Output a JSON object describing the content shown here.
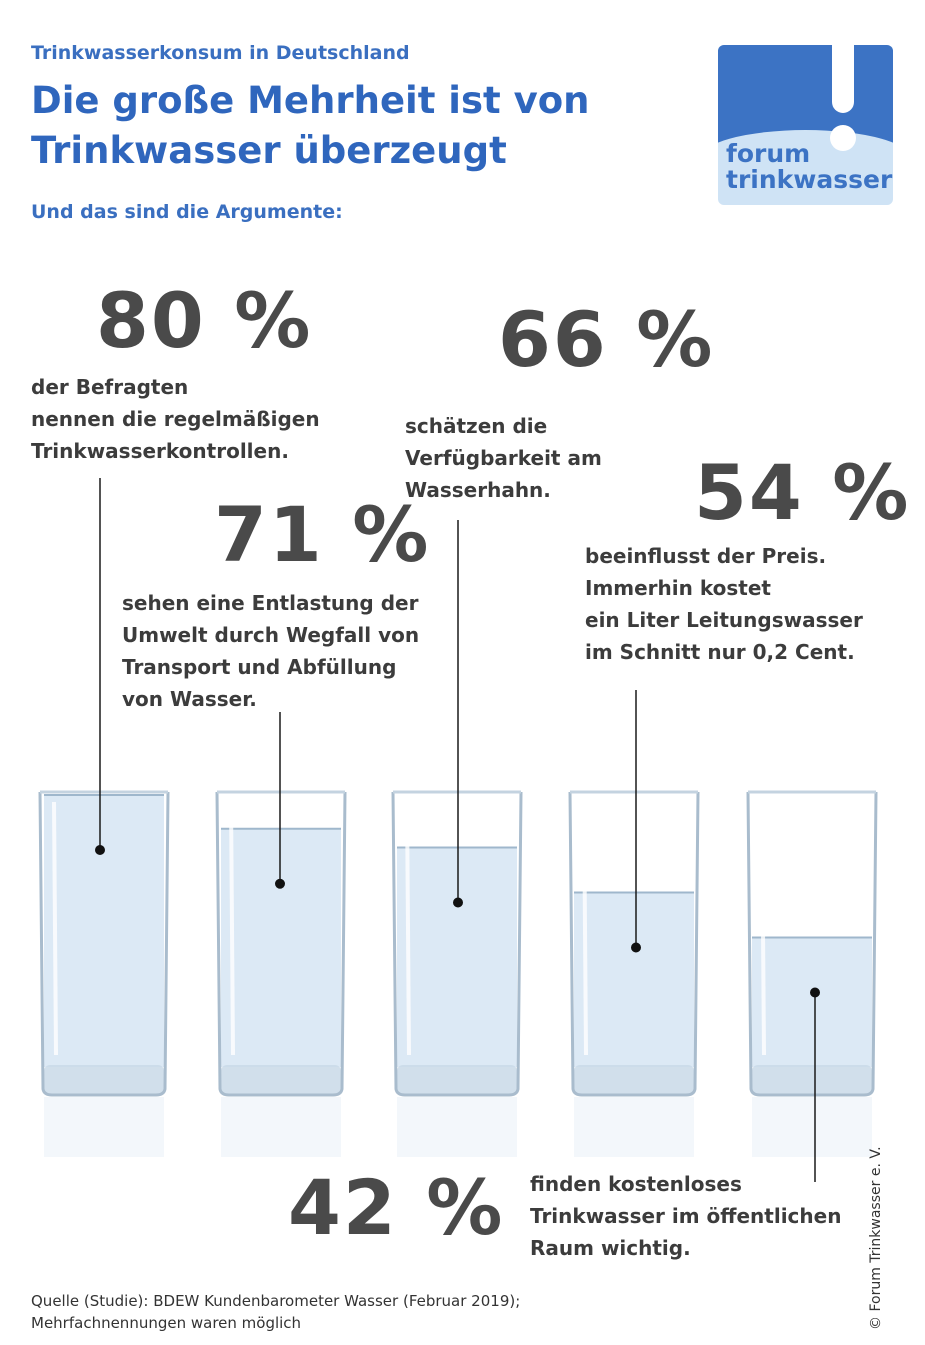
{
  "header": {
    "kicker": "Trinkwasserkonsum in Deutschland",
    "title": "Die große Mehrheit ist von Trinkwasser überzeugt",
    "subtitle": "Und das sind die Argumente:"
  },
  "logo": {
    "line1": "forum",
    "line2": "trinkwasser",
    "icon": "exclamation-mark-icon",
    "color": "#3c73c4"
  },
  "chart_data": {
    "type": "bar",
    "title": "Die große Mehrheit ist von Trinkwasser überzeugt",
    "categories": [
      "regelmäßige Trinkwasserkontrollen",
      "Entlastung der Umwelt",
      "Verfügbarkeit am Wasserhahn",
      "Preis",
      "kostenloses Trinkwasser im öffentlichen Raum"
    ],
    "values": [
      80,
      71,
      66,
      54,
      42
    ],
    "ylim": [
      0,
      100
    ],
    "grid": false,
    "legend": "none",
    "water_color": "#dce9f5"
  },
  "stats": [
    {
      "value": "80 %",
      "lines": [
        "der Befragten",
        "nennen die regelmäßigen",
        "Trinkwasserkontrollen."
      ]
    },
    {
      "value": "71 %",
      "lines": [
        "sehen eine Entlastung der",
        "Umwelt durch Wegfall von",
        "Transport und Abfüllung",
        "von Wasser."
      ]
    },
    {
      "value": "66 %",
      "lines": [
        "schätzen die",
        "Verfügbarkeit am",
        "Wasserhahn."
      ]
    },
    {
      "value": "54 %",
      "lines": [
        "beeinflusst der Preis.",
        "Immerhin kostet",
        "ein Liter Leitungswasser",
        "im Schnitt nur 0,2 Cent."
      ]
    },
    {
      "value": "42 %",
      "lines": [
        "finden kostenloses",
        "Trinkwasser im öffentlichen",
        "Raum wichtig."
      ]
    }
  ],
  "footer": {
    "source_line1": "Quelle (Studie): BDEW Kundenbarometer Wasser (Februar 2019);",
    "source_line2": "Mehrfachnennungen waren möglich",
    "copyright": "© Forum Trinkwasser e. V."
  }
}
